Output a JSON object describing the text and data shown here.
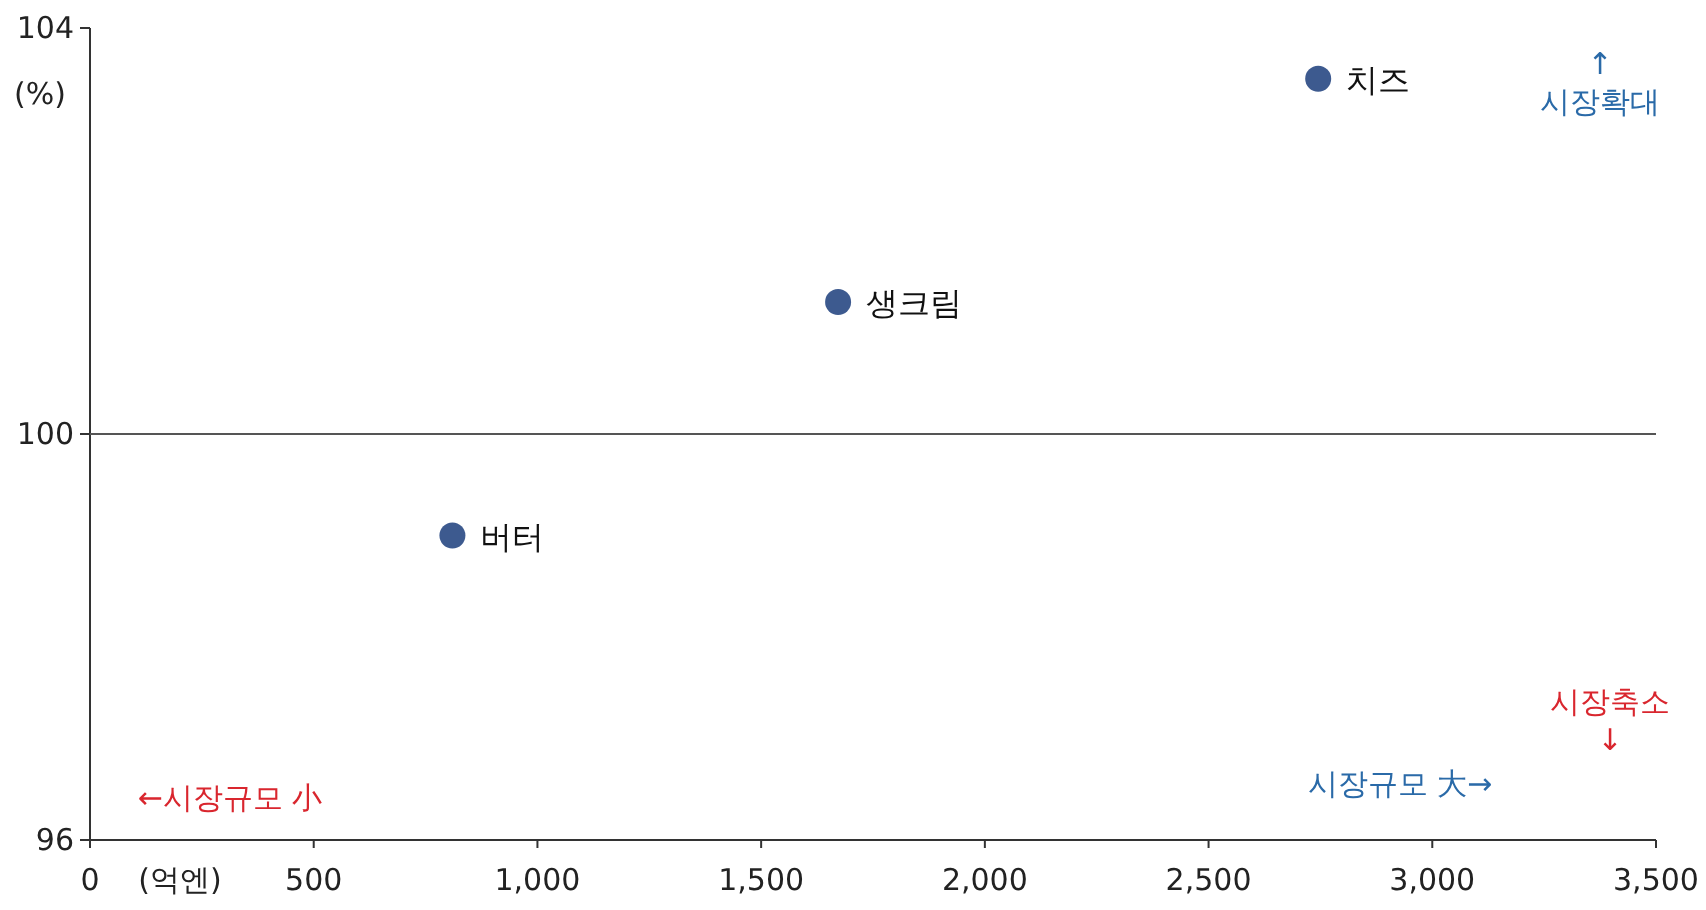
{
  "chart_data": {
    "type": "scatter",
    "xlabel": "(억엔)",
    "ylabel": "(%)",
    "series": [
      {
        "name": "버터",
        "color": "#3d5a8f",
        "x": [
          810
        ],
        "values": [
          99.0
        ]
      },
      {
        "name": "생크림",
        "color": "#3d5a8f",
        "x": [
          1672
        ],
        "values": [
          101.3
        ]
      },
      {
        "name": "치즈",
        "color": "#3d5a8f",
        "x": [
          2745
        ],
        "values": [
          103.5
        ]
      }
    ],
    "xlim": [
      0,
      3500
    ],
    "ylim": [
      96,
      104
    ],
    "xticks": [
      0,
      500,
      {
        "value": 1000,
        "label": "1,000"
      },
      {
        "value": 1500,
        "label": "1,500"
      },
      {
        "value": 2000,
        "label": "2,000"
      },
      {
        "value": 2500,
        "label": "2,500"
      },
      {
        "value": 3000,
        "label": "3,000"
      },
      {
        "value": 3500,
        "label": "3,500"
      }
    ],
    "yticks": [
      96,
      100,
      104
    ],
    "ref_lines": [
      {
        "axis": "y",
        "value": 100,
        "color": "#555555"
      }
    ],
    "marker": "circle",
    "annotations": [
      "↑\n시장확대",
      "시장축소\n↓",
      "←시장규모 小",
      "시장규모 大→"
    ]
  }
}
